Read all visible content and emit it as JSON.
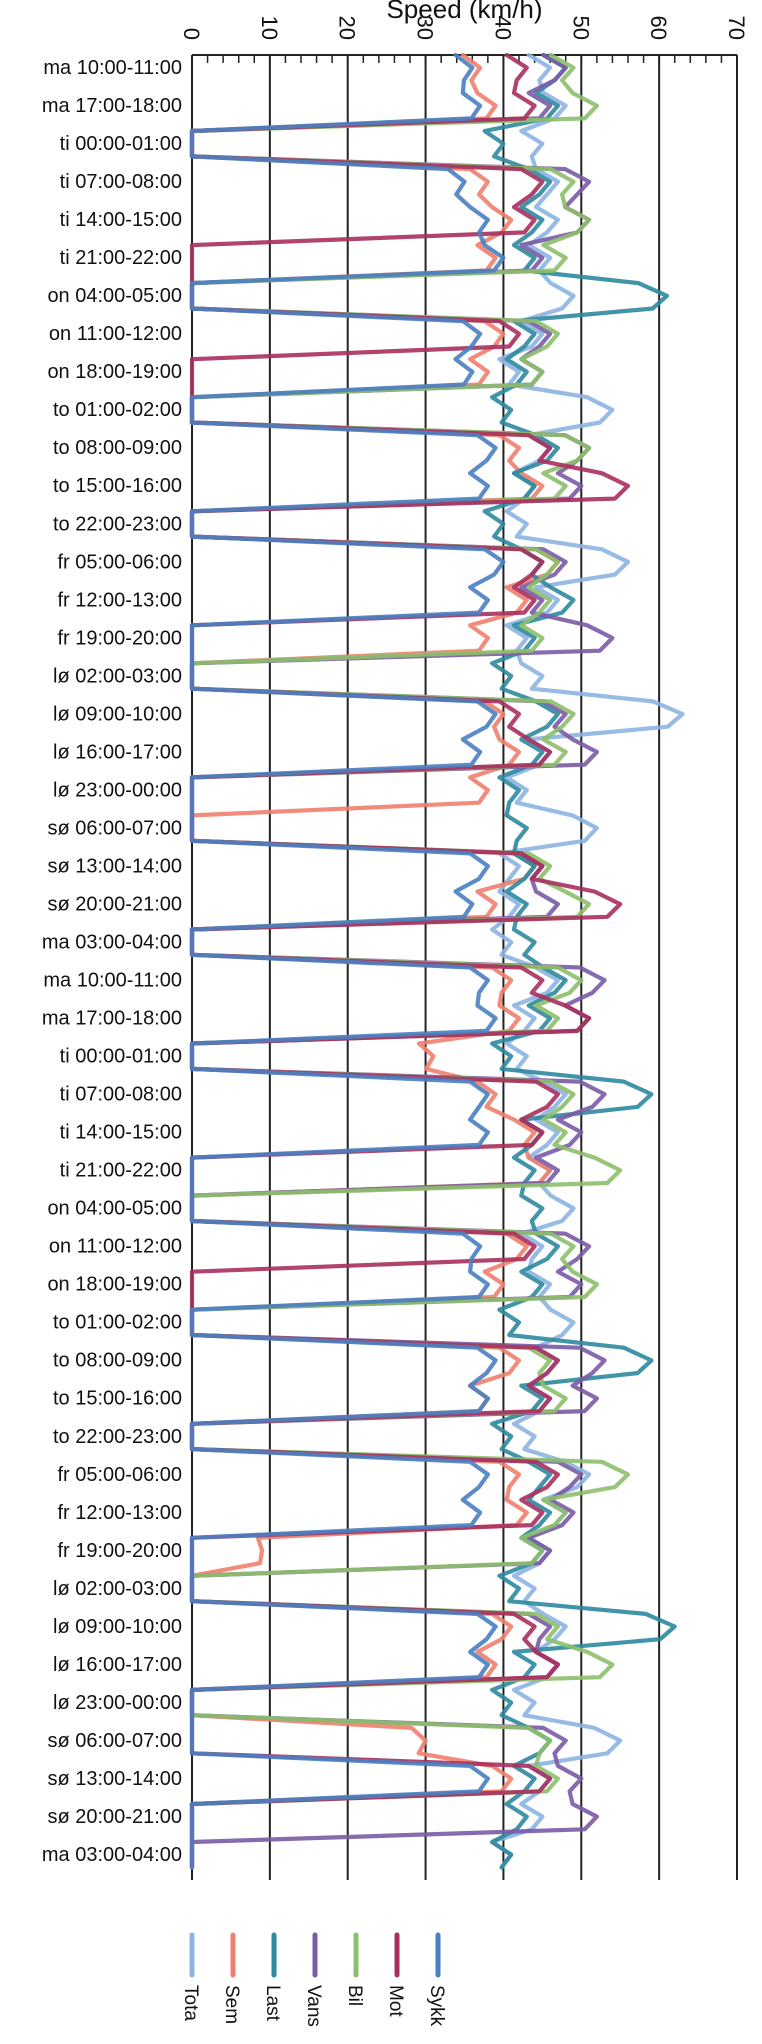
{
  "chart_data": {
    "type": "line",
    "orientation": "horizontal",
    "xlabel": "Speed (km/h)",
    "xlim": [
      0,
      70
    ],
    "x_ticks": [
      0,
      10,
      20,
      30,
      40,
      50,
      60,
      70
    ],
    "category_labels": [
      "ma 10:00-11:00",
      "ma 17:00-18:00",
      "ti 00:00-01:00",
      "ti 07:00-08:00",
      "ti 14:00-15:00",
      "ti 21:00-22:00",
      "on 04:00-05:00",
      "on 11:00-12:00",
      "on 18:00-19:00",
      "to 01:00-02:00",
      "to 08:00-09:00",
      "to 15:00-16:00",
      "to 22:00-23:00",
      "fr 05:00-06:00",
      "fr 12:00-13:00",
      "fr 19:00-20:00",
      "lø 02:00-03:00",
      "lø 09:00-10:00",
      "lø 16:00-17:00",
      "lø 23:00-00:00",
      "sø 06:00-07:00",
      "sø 13:00-14:00",
      "sø 20:00-21:00",
      "ma 03:00-04:00",
      "ma 10:00-11:00",
      "ma 17:00-18:00",
      "ti 00:00-01:00",
      "ti 07:00-08:00",
      "ti 14:00-15:00",
      "ti 21:00-22:00",
      "on 04:00-05:00",
      "on 11:00-12:00",
      "on 18:00-19:00",
      "to 01:00-02:00",
      "to 08:00-09:00",
      "to 15:00-16:00",
      "to 22:00-23:00",
      "fr 05:00-06:00",
      "fr 12:00-13:00",
      "fr 19:00-20:00",
      "lø 02:00-03:00",
      "lø 09:00-10:00",
      "lø 16:00-17:00",
      "lø 23:00-00:00",
      "sø 06:00-07:00",
      "sø 13:00-14:00",
      "sø 20:00-21:00",
      "ma 03:00-04:00"
    ],
    "legend_position": "bottom",
    "grid": true,
    "series": [
      {
        "name": "Tota",
        "color": "#8DB4E2",
        "values": [
          46,
          48,
          45,
          47,
          47,
          46,
          49,
          45,
          42,
          54,
          46,
          44,
          43,
          56,
          47,
          43,
          45,
          63,
          46,
          43,
          52,
          42,
          42,
          41,
          47,
          44,
          43,
          48,
          47,
          46,
          49,
          45,
          46,
          49,
          47,
          46,
          44,
          51,
          48,
          46,
          44,
          48,
          47,
          44,
          55,
          46,
          45,
          41
        ]
      },
      {
        "name": "Sem",
        "color": "#F0806E",
        "values": [
          37,
          39,
          0,
          38,
          41,
          39,
          0,
          40,
          38,
          0,
          42,
          45,
          0,
          47,
          43,
          38,
          0,
          40,
          42,
          38,
          0,
          44,
          39,
          0,
          41,
          42,
          31,
          39,
          44,
          46,
          0,
          43,
          40,
          0,
          42,
          38,
          0,
          42,
          43,
          9,
          0,
          41,
          39,
          0,
          30,
          41,
          0,
          0
        ]
      },
      {
        "name": "Last",
        "color": "#2E8A9E",
        "values": [
          48,
          47,
          40,
          46,
          45,
          44,
          61,
          44,
          43,
          41,
          47,
          44,
          40,
          45,
          49,
          44,
          41,
          47,
          45,
          42,
          43,
          44,
          43,
          44,
          48,
          46,
          41,
          59,
          45,
          44,
          45,
          47,
          45,
          42,
          59,
          45,
          41,
          46,
          46,
          45,
          42,
          62,
          44,
          41,
          46,
          44,
          43,
          41
        ]
      },
      {
        "name": "Vans",
        "color": "#7A5BA6",
        "values": [
          48,
          46,
          0,
          51,
          51,
          45,
          0,
          46,
          45,
          0,
          51,
          50,
          0,
          48,
          45,
          54,
          0,
          48,
          52,
          0,
          0,
          45,
          47,
          0,
          53,
          51,
          0,
          53,
          50,
          47,
          0,
          51,
          50,
          0,
          53,
          52,
          0,
          50,
          49,
          46,
          0,
          46,
          47,
          0,
          48,
          50,
          52,
          0
        ]
      },
      {
        "name": "Bil",
        "color": "#8DBF6A",
        "values": [
          49,
          52,
          0,
          49,
          51,
          48,
          0,
          47,
          45,
          0,
          51,
          48,
          0,
          47,
          46,
          45,
          0,
          49,
          48,
          0,
          0,
          46,
          51,
          0,
          50,
          47,
          0,
          49,
          48,
          55,
          0,
          49,
          52,
          0,
          46,
          48,
          0,
          56,
          48,
          45,
          0,
          47,
          54,
          0,
          46,
          47,
          0,
          0
        ]
      },
      {
        "name": "Mot",
        "color": "#A8305E",
        "values": [
          43,
          44,
          0,
          45,
          44,
          0,
          0,
          42,
          0,
          0,
          46,
          56,
          0,
          45,
          44,
          0,
          0,
          42,
          46,
          0,
          0,
          45,
          55,
          0,
          45,
          51,
          0,
          47,
          45,
          0,
          0,
          44,
          0,
          0,
          47,
          46,
          0,
          47,
          45,
          0,
          0,
          44,
          47,
          0,
          0,
          46,
          0,
          0
        ]
      },
      {
        "name": "Sykk",
        "color": "#4A7FC1",
        "values": [
          36,
          37,
          0,
          35,
          38,
          40,
          0,
          37,
          36,
          0,
          39,
          38,
          0,
          40,
          38,
          0,
          0,
          39,
          37,
          0,
          0,
          38,
          36,
          0,
          38,
          39,
          0,
          38,
          38,
          0,
          0,
          37,
          38,
          0,
          39,
          38,
          0,
          38,
          37,
          0,
          0,
          39,
          38,
          0,
          0,
          38,
          0,
          0
        ]
      }
    ]
  }
}
